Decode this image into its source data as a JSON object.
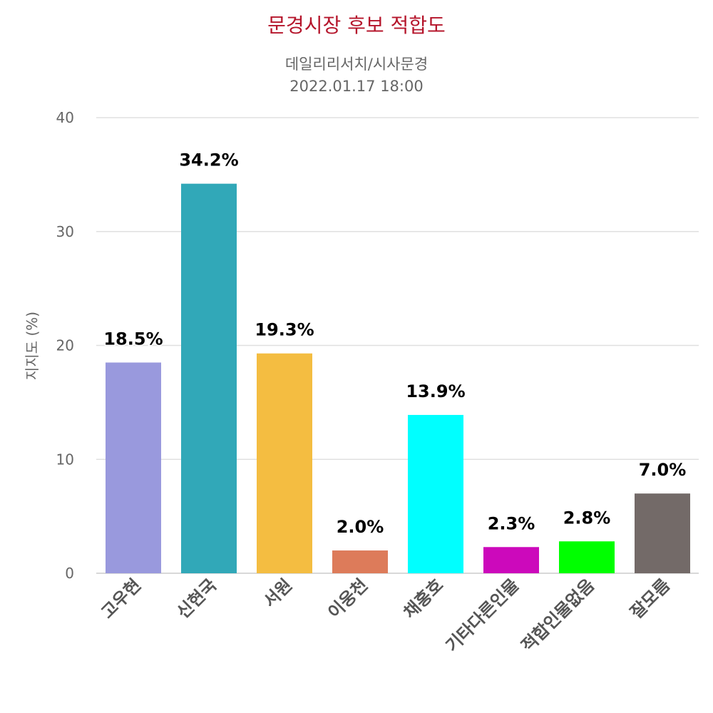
{
  "chart_data": {
    "type": "bar",
    "title": "문경시장 후보 적합도",
    "subtitle_line1": "데일리리서치/시사문경",
    "subtitle_line2": "2022.01.17 18:00",
    "ylabel": "지지도 (%)",
    "xlabel": "",
    "ylim": [
      0,
      40
    ],
    "yticks": [
      0,
      10,
      20,
      30,
      40
    ],
    "grid": true,
    "categories": [
      "고우현",
      "신현국",
      "서원",
      "이웅천",
      "채홍호",
      "기타다른인물",
      "적합인물없음",
      "잘모름"
    ],
    "values": [
      18.5,
      34.2,
      19.3,
      2.0,
      13.9,
      2.3,
      2.8,
      7.0
    ],
    "data_labels": [
      "18.5%",
      "34.2%",
      "19.3%",
      "2.0%",
      "13.9%",
      "2.3%",
      "2.8%",
      "7.0%"
    ],
    "colors": [
      "#9999dd",
      "#31a8b8",
      "#f4bd41",
      "#dd7b5a",
      "#00ffff",
      "#cc09bb",
      "#00ff00",
      "#736a68"
    ],
    "title_color": "#b5152b",
    "text_color": "#666666",
    "grid_color": "#e0e0e0"
  }
}
